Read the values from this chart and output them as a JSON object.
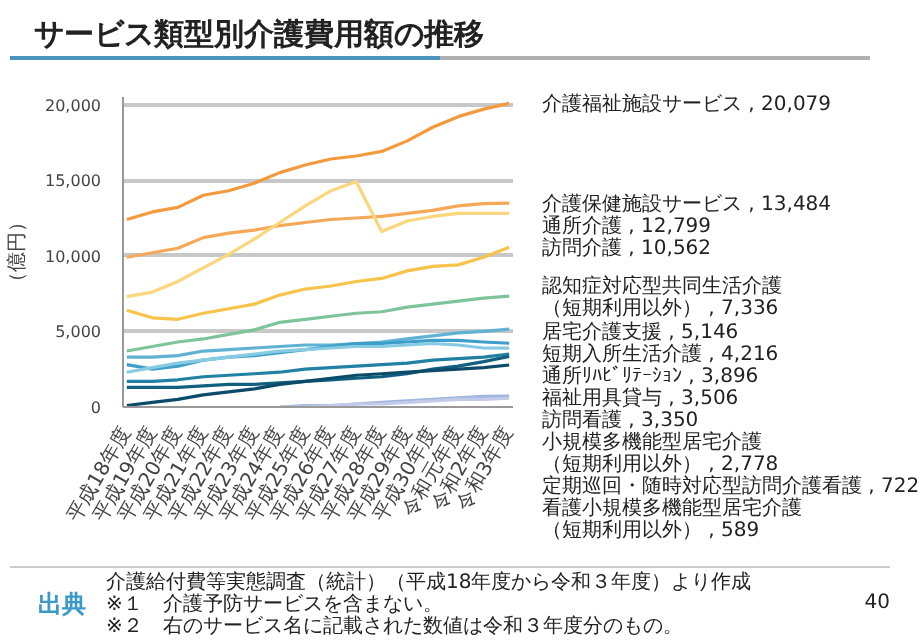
{
  "chart_data": {
    "type": "line",
    "title": "サービス類型別介護費用額の推移",
    "ylabel": "（億円）",
    "categories": [
      "平成18年度",
      "平成19年度",
      "平成20年度",
      "平成21年度",
      "平成22年度",
      "平成23年度",
      "平成24年度",
      "平成25年度",
      "平成26年度",
      "平成27年度",
      "平成28年度",
      "平成29年度",
      "平成30年度",
      "令和元年度",
      "令和2年度",
      "令和3年度"
    ],
    "ylim": [
      0,
      20500
    ],
    "yticks": [
      0,
      {
        "value": 5000,
        "label": "5,000"
      },
      {
        "value": 10000,
        "label": "10,000"
      },
      {
        "value": 15000,
        "label": "15,000"
      },
      {
        "value": 20000,
        "label": "20,000"
      }
    ],
    "grid": "y",
    "series": [
      {
        "name": "介護福祉施設サービス , 20,079",
        "color": "#f39a3d",
        "values": [
          12400,
          12900,
          13200,
          14000,
          14300,
          14800,
          15500,
          16000,
          16400,
          16600,
          16900,
          17600,
          18500,
          19200,
          19700,
          20079
        ]
      },
      {
        "name": "介護保健施設サービス , 13,484",
        "color": "#f5a857",
        "values": [
          9900,
          10200,
          10500,
          11200,
          11500,
          11700,
          12000,
          12200,
          12400,
          12500,
          12600,
          12800,
          13000,
          13300,
          13450,
          13484
        ]
      },
      {
        "name": "通所介護 , 12,799",
        "color": "#fad67c",
        "values": [
          7300,
          7600,
          8300,
          9200,
          10100,
          11100,
          12200,
          13300,
          14300,
          14900,
          11600,
          12300,
          12600,
          12800,
          12800,
          12799
        ]
      },
      {
        "name": "訪問介護 , 10,562",
        "color": "#f7c34a",
        "values": [
          6400,
          5900,
          5800,
          6200,
          6500,
          6800,
          7400,
          7800,
          8000,
          8300,
          8500,
          9000,
          9300,
          9400,
          9900,
          10562
        ]
      },
      {
        "name": "認知症対応型共同生活介護（短期利用以外） , 7,336",
        "color": "#7dc49b",
        "values": [
          3700,
          4000,
          4300,
          4500,
          4800,
          5100,
          5600,
          5800,
          6000,
          6200,
          6300,
          6600,
          6800,
          7000,
          7200,
          7336
        ]
      },
      {
        "name": "居宅介護支援 , 5,146",
        "color": "#5fb2d4",
        "values": [
          3300,
          3300,
          3400,
          3700,
          3800,
          3900,
          4000,
          4100,
          4100,
          4200,
          4300,
          4500,
          4700,
          4900,
          5000,
          5146
        ]
      },
      {
        "name": "短期入所生活介護 , 4,216",
        "color": "#3d9ec9",
        "values": [
          2800,
          2500,
          2700,
          3100,
          3300,
          3400,
          3600,
          3800,
          4000,
          4200,
          4200,
          4300,
          4400,
          4400,
          4300,
          4216
        ]
      },
      {
        "name": "通所ﾘﾊﾋﾞﾘﾃｰｼｮﾝ , 3,896",
        "color": "#86cbe3",
        "values": [
          2300,
          2600,
          2900,
          3100,
          3300,
          3500,
          3700,
          3800,
          3900,
          4000,
          4000,
          4100,
          4200,
          4100,
          3900,
          3896
        ]
      },
      {
        "name": "福祉用具貸与 , 3,506",
        "color": "#2181a3",
        "values": [
          1700,
          1700,
          1800,
          2000,
          2100,
          2200,
          2300,
          2500,
          2600,
          2700,
          2800,
          2900,
          3100,
          3200,
          3300,
          3506
        ]
      },
      {
        "name": "訪問看護 , 3,350",
        "color": "#12607f",
        "values": [
          1300,
          1300,
          1300,
          1400,
          1500,
          1500,
          1600,
          1700,
          1800,
          1900,
          2000,
          2200,
          2500,
          2700,
          3000,
          3350
        ]
      },
      {
        "name": "小規模多機能型居宅介護（短期利用以外） , 2,778",
        "color": "#0b4a68",
        "values": [
          100,
          300,
          500,
          800,
          1000,
          1200,
          1500,
          1700,
          1900,
          2100,
          2200,
          2300,
          2400,
          2500,
          2600,
          2778
        ]
      },
      {
        "name": "定期巡回・随時対応型訪問介護看護 , 722",
        "color": "#9fb6df",
        "values": [
          null,
          null,
          null,
          null,
          null,
          null,
          0,
          100,
          100,
          200,
          300,
          400,
          500,
          600,
          700,
          722
        ]
      },
      {
        "name": "看護小規模多機能型居宅介護（短期利用以外） , 589",
        "color": "#c3cae9",
        "values": [
          null,
          null,
          null,
          null,
          null,
          null,
          0,
          0,
          100,
          200,
          200,
          300,
          400,
          500,
          500,
          589
        ]
      }
    ],
    "annotations": [
      "出典",
      "介護給付費等実態調査（統計）（平成18年度から令和３年度）より作成",
      "※１　介護予防サービスを含まない。",
      "※２　右のサービス名に記載された数値は令和３年度分のもの。",
      "40"
    ]
  }
}
